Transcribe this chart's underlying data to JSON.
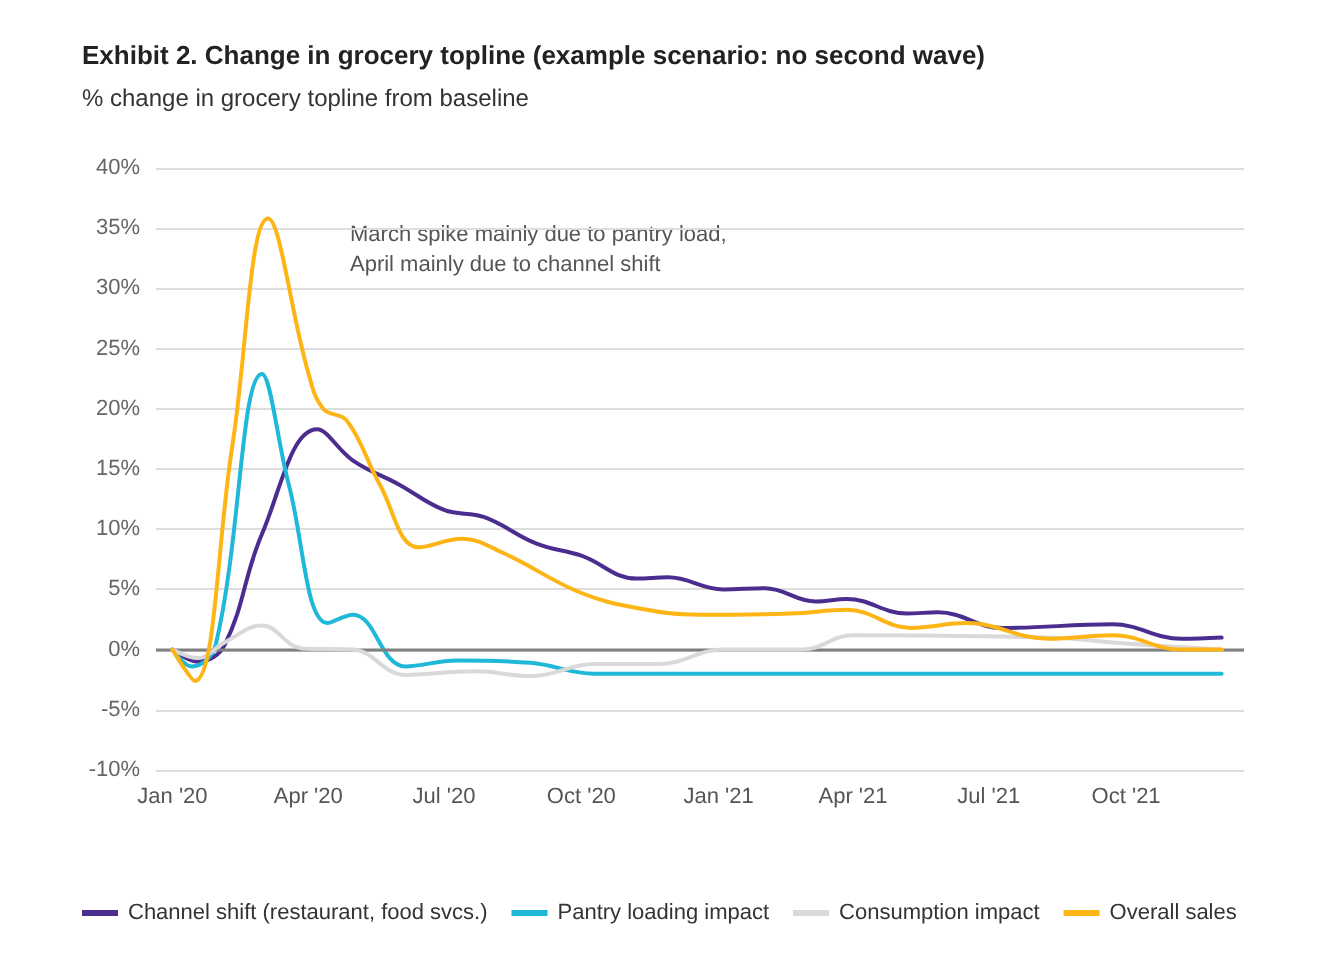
{
  "chart_data": {
    "type": "line",
    "title": "Exhibit 2. Change in grocery topline (example scenario: no second wave)",
    "subtitle": "% change in grocery topline from baseline",
    "annotations": [
      "March spike mainly due to pantry load,\nApril mainly due to channel shift"
    ],
    "xlim": [
      "2019-12-21",
      "2021-12-19"
    ],
    "xticks": [
      {
        "value": "2020-01-01",
        "label": "Jan '20"
      },
      {
        "value": "2020-04-01",
        "label": "Apr '20"
      },
      {
        "value": "2020-07-01",
        "label": "Jul '20"
      },
      {
        "value": "2020-10-01",
        "label": "Oct '20"
      },
      {
        "value": "2021-01-01",
        "label": "Jan '21"
      },
      {
        "value": "2021-04-01",
        "label": "Apr '21"
      },
      {
        "value": "2021-07-01",
        "label": "Jul '21"
      },
      {
        "value": "2021-10-01",
        "label": "Oct '21"
      }
    ],
    "ylim": [
      -10,
      40
    ],
    "yticks": [
      {
        "value": -10,
        "label": "-10%"
      },
      {
        "value": -5,
        "label": "-5%"
      },
      {
        "value": 0,
        "label": "0%"
      },
      {
        "value": 5,
        "label": "5%"
      },
      {
        "value": 10,
        "label": "10%"
      },
      {
        "value": 15,
        "label": "15%"
      },
      {
        "value": 20,
        "label": "20%"
      },
      {
        "value": 25,
        "label": "25%"
      },
      {
        "value": 30,
        "label": "30%"
      },
      {
        "value": 35,
        "label": "35%"
      },
      {
        "value": 40,
        "label": "40%"
      }
    ],
    "grid": "y",
    "legend": "bottom",
    "marker": "none",
    "line_style": "solid",
    "ref_lines": [
      {
        "axis": "y",
        "value": 0,
        "color": "#808080"
      }
    ],
    "series": [
      {
        "name": "Channel shift (restaurant, food svcs.)",
        "color": "#4b2d8f",
        "x": [
          "2020-01-01",
          "2020-01-18",
          "2020-02-05",
          "2020-03-01",
          "2020-04-07",
          "2020-05-01",
          "2020-06-01",
          "2020-07-01",
          "2020-07-28",
          "2020-09-01",
          "2020-10-01",
          "2020-11-07",
          "2020-11-28",
          "2021-01-04",
          "2021-02-01",
          "2021-03-07",
          "2021-03-28",
          "2021-05-07",
          "2021-05-28",
          "2021-07-10",
          "2021-09-22",
          "2021-11-07",
          "2021-12-04"
        ],
        "values": [
          0,
          -1.0,
          0.4,
          9.6,
          18.3,
          15.7,
          13.7,
          11.6,
          11,
          8.8,
          7.8,
          5.9,
          6.0,
          5.0,
          5.1,
          4.0,
          4.2,
          3.0,
          3.1,
          1.8,
          2.1,
          0.9,
          1.0
        ]
      },
      {
        "name": "Pantry loading impact",
        "color": "#1fb8d8",
        "x": [
          "2020-01-01",
          "2020-01-14",
          "2020-01-30",
          "2020-03-01",
          "2020-03-19",
          "2020-04-14",
          "2020-05-01",
          "2020-06-05",
          "2020-07-10",
          "2020-08-28",
          "2020-10-10",
          "2021-12-04"
        ],
        "values": [
          0,
          -1.4,
          0.4,
          22.9,
          13.7,
          2.2,
          2.9,
          -1.4,
          -0.9,
          -1.1,
          -2.0,
          -2.0
        ]
      },
      {
        "name": "Consumption impact",
        "color": "#d9d9d9",
        "x": [
          "2020-01-01",
          "2020-01-18",
          "2020-02-05",
          "2020-03-01",
          "2020-03-28",
          "2020-05-01",
          "2020-06-05",
          "2020-07-22",
          "2020-08-28",
          "2020-10-10",
          "2020-11-22",
          "2021-01-04",
          "2021-02-26",
          "2021-04-01",
          "2021-08-10",
          "2021-10-01",
          "2021-12-04"
        ],
        "values": [
          0,
          -0.7,
          0.6,
          2.0,
          0.1,
          0,
          -2.1,
          -1.8,
          -2.2,
          -1.2,
          -1.2,
          0,
          0,
          1.2,
          1.0,
          0.5,
          0
        ]
      },
      {
        "name": "Overall sales",
        "color": "#fdb515",
        "x": [
          "2020-01-01",
          "2020-01-16",
          "2020-02-10",
          "2020-03-05",
          "2020-04-01",
          "2020-04-11",
          "2020-04-27",
          "2020-05-19",
          "2020-06-14",
          "2020-07-13",
          "2020-08-10",
          "2020-10-01",
          "2020-11-10",
          "2020-12-19",
          "2021-02-18",
          "2021-03-28",
          "2021-05-10",
          "2021-06-16",
          "2021-08-10",
          "2021-09-22",
          "2021-11-07",
          "2021-12-04"
        ],
        "values": [
          0,
          -2.6,
          16.8,
          35.8,
          23,
          20,
          19,
          13.7,
          8.5,
          9.2,
          8,
          4.7,
          3.4,
          2.9,
          3.0,
          3.3,
          1.8,
          2.2,
          0.9,
          1.2,
          0,
          0
        ]
      }
    ]
  }
}
